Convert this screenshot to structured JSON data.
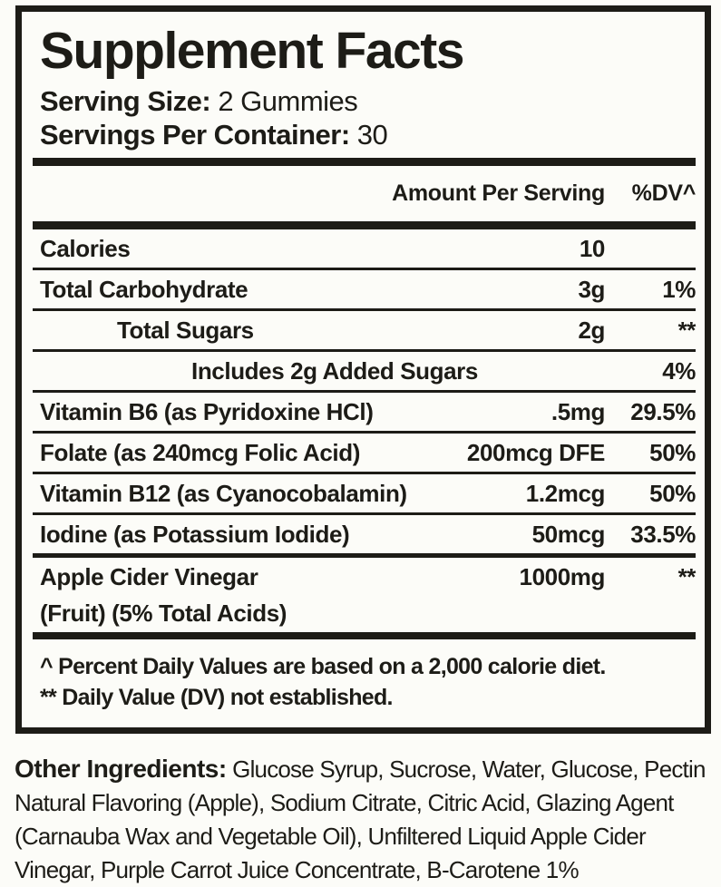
{
  "colors": {
    "text": "#1d1c17",
    "background": "#fcfcf8",
    "border": "#1d1c17"
  },
  "label": {
    "title": "Supplement Facts",
    "serving_size_label": "Serving Size:",
    "serving_size_value": "2 Gummies",
    "servings_per_container_label": "Servings Per Container:",
    "servings_per_container_value": "30",
    "header": {
      "amount": "Amount Per Serving",
      "dv": "%DV^"
    },
    "rows": [
      {
        "name": "Calories",
        "amount": "10",
        "dv": ""
      },
      {
        "name": "Total Carbohydrate",
        "amount": "3g",
        "dv": "1%"
      },
      {
        "name": "Total Sugars",
        "amount": "2g",
        "dv": "**"
      },
      {
        "name": "Includes 2g Added Sugars",
        "amount": "",
        "dv": "4%"
      },
      {
        "name": "Vitamin B6 (as Pyridoxine HCl)",
        "amount": ".5mg",
        "dv": "29.5%"
      },
      {
        "name": "Folate (as 240mcg Folic Acid)",
        "amount": "200mcg DFE",
        "dv": "50%"
      },
      {
        "name": "Vitamin B12 (as Cyanocobalamin)",
        "amount": "1.2mcg",
        "dv": "50%"
      },
      {
        "name": "Iodine (as Potassium Iodide)",
        "amount": "50mcg",
        "dv": "33.5%"
      },
      {
        "name": "Apple Cider Vinegar",
        "name_line2": "(Fruit) (5% Total Acids)",
        "amount": "1000mg",
        "dv": "**"
      }
    ],
    "footnotes": [
      "^ Percent Daily Values are based on a 2,000 calorie diet.",
      "** Daily Value (DV) not established."
    ]
  },
  "other_ingredients": {
    "label": "Other Ingredients:",
    "text": "Glucose Syrup, Sucrose, Water, Glucose, Pectin Natural Flavoring (Apple), Sodium Citrate, Citric Acid, Glazing Agent (Carnauba Wax and Vegetable Oil), Unfiltered Liquid Apple Cider Vinegar, Purple Carrot Juice Concentrate, B-Carotene 1%"
  }
}
